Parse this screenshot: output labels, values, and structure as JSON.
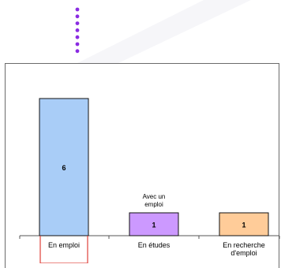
{
  "chart_data": {
    "type": "bar",
    "categories": [
      "En emploi",
      "En études",
      "En recherche d'emploi"
    ],
    "category_lines": [
      [
        "En emploi"
      ],
      [
        "En études"
      ],
      [
        "En recherche",
        "d'emploi"
      ]
    ],
    "values": [
      6,
      1,
      1
    ],
    "data_labels": [
      "6",
      "1",
      "1"
    ],
    "colors": [
      "#a9cdf7",
      "#cc99ff",
      "#ffcc99"
    ],
    "annotations": [
      {
        "category": "En études",
        "lines": [
          "Avec un",
          "emploi"
        ]
      }
    ],
    "highlight": {
      "category": "En emploi",
      "color": "#e0413a"
    },
    "title": "",
    "xlabel": "",
    "ylabel": "",
    "ylim": [
      0,
      6
    ],
    "grid": false,
    "legend": "none"
  },
  "decoration": {
    "dot_color": "#8a2be2",
    "dot_count": 7
  }
}
